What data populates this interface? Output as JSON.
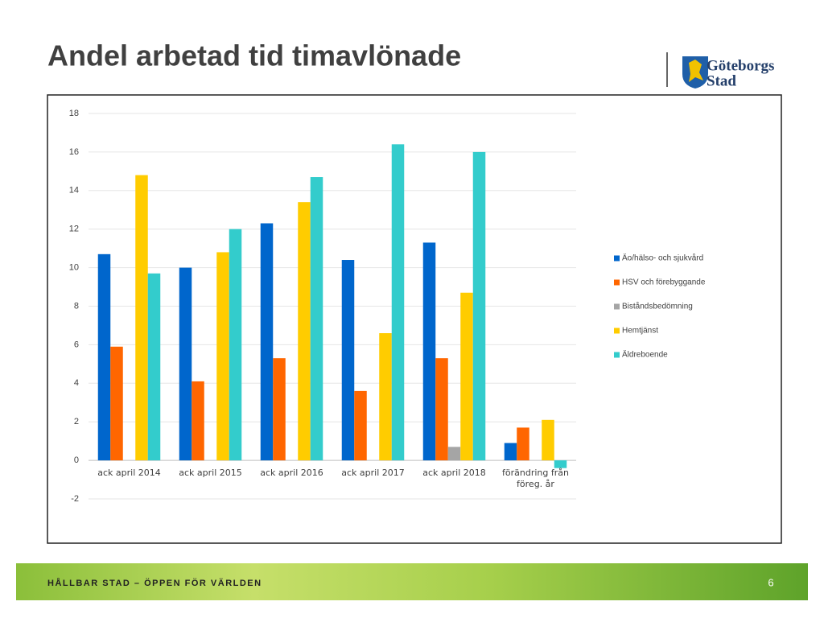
{
  "chart_data": {
    "type": "bar",
    "title": "Andel arbetad tid timavlönade",
    "categories": [
      "ack april 2014",
      "ack april 2015",
      "ack april 2016",
      "ack april 2017",
      "ack april 2018",
      "förändring från föreg. år"
    ],
    "series": [
      {
        "name": "Äo/hälso- och sjukvård",
        "color": "#0066cc",
        "values": [
          10.7,
          10.0,
          12.3,
          10.4,
          11.3,
          0.9
        ]
      },
      {
        "name": "HSV och förebyggande",
        "color": "#ff6600",
        "values": [
          5.9,
          4.1,
          5.3,
          3.6,
          5.3,
          1.7
        ]
      },
      {
        "name": "Biståndsbedömning",
        "color": "#a5a5a5",
        "values": [
          null,
          null,
          null,
          null,
          0.7,
          null
        ]
      },
      {
        "name": "Hemtjänst",
        "color": "#ffcc00",
        "values": [
          14.8,
          10.8,
          13.4,
          6.6,
          8.7,
          2.1
        ]
      },
      {
        "name": "Äldreboende",
        "color": "#33cccc",
        "values": [
          9.7,
          12.0,
          14.7,
          16.4,
          16.0,
          -0.4
        ]
      }
    ],
    "ylim": [
      -2,
      18
    ],
    "yticks": [
      -2,
      0,
      2,
      4,
      6,
      8,
      10,
      12,
      14,
      16,
      18
    ],
    "grid": true,
    "legend": "right"
  },
  "logo": {
    "line1": "Göteborgs",
    "line2": "Stad"
  },
  "footer": {
    "text": "HÅLLBAR STAD – ÖPPEN FÖR VÄRLDEN",
    "page": "6"
  }
}
